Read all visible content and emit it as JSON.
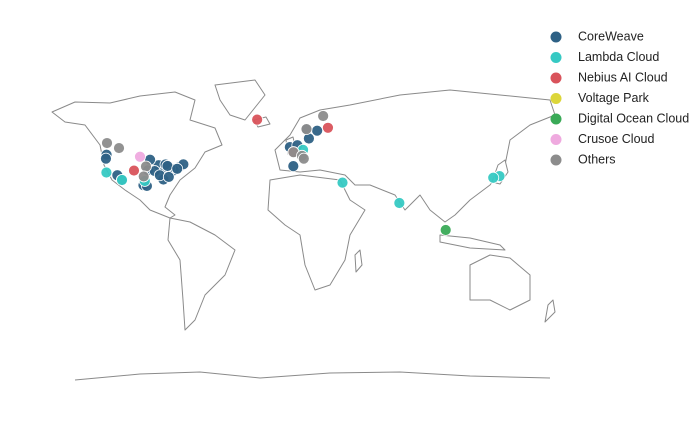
{
  "chart_data": {
    "type": "map",
    "series": [
      {
        "name": "CoreWeave",
        "color": "#2e6185",
        "lat": [
          47.6,
          45.5,
          36.2,
          33.4,
          41.9,
          40.7,
          39.0,
          33.7,
          32.8,
          30.3,
          29.8,
          39.1,
          40.0,
          40.4,
          42.3,
          41.5,
          38.6,
          36.2,
          35.2,
          42.4,
          39.9,
          44.9,
          59.3,
          59.9,
          51.5,
          41.4,
          52.4,
          55.7
        ],
        "lon": [
          -122.3,
          -122.7,
          -115.1,
          -112.1,
          -87.6,
          -74.0,
          -77.5,
          -84.4,
          -96.8,
          -97.7,
          -95.4,
          -94.6,
          -83.0,
          -80.0,
          -83.0,
          -81.7,
          -90.2,
          -86.8,
          -80.8,
          -71.1,
          -75.2,
          -93.3,
          18.1,
          10.8,
          -0.1,
          2.2,
          4.9,
          12.6
        ]
      },
      {
        "name": "Lambda Cloud",
        "color": "#36c9c3",
        "lat": [
          37.8,
          33.4,
          32.8,
          50.1,
          31.8,
          19.1,
          35.7,
          34.7
        ],
        "lon": [
          -122.4,
          -112.0,
          -96.8,
          8.7,
          35.0,
          72.9,
          139.7,
          135.5
        ]
      },
      {
        "name": "Nebius AI Cloud",
        "color": "#d9535b",
        "lat": [
          64.1,
          60.6,
          48.9,
          38.9
        ],
        "lon": [
          -21.9,
          25.3,
          2.35,
          -104.0
        ]
      },
      {
        "name": "Voltage Park",
        "color": "#dcd63a",
        "lat": [],
        "lon": []
      },
      {
        "name": "Digital Ocean Cloud",
        "color": "#3aaa57",
        "lat": [
          1.35
        ],
        "lon": [
          103.8
        ]
      },
      {
        "name": "Crusoe Cloud",
        "color": "#efaadf",
        "lat": [
          46.5
        ],
        "lon": [
          -100.0
        ]
      },
      {
        "name": "Others",
        "color": "#8c8c8c",
        "lat": [
          53.5,
          51.0,
          65.6,
          60.0,
          48.9,
          47.0,
          45.5,
          41.2,
          35.5
        ],
        "lon": [
          -122.0,
          -114.0,
          22.1,
          11.0,
          2.3,
          8.0,
          9.2,
          -96.0,
          -97.5
        ]
      }
    ]
  }
}
